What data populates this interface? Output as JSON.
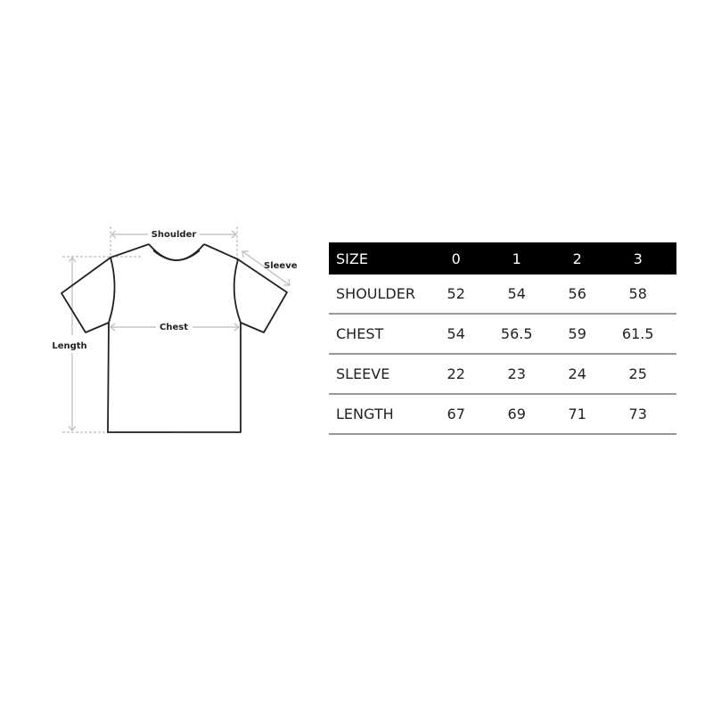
{
  "diagram": {
    "labels": {
      "shoulder": "Shoulder",
      "sleeve": "Sleeve",
      "chest": "Chest",
      "length": "Length"
    }
  },
  "table": {
    "header": [
      "SIZE",
      "0",
      "1",
      "2",
      "3"
    ],
    "rows": [
      [
        "SHOULDER",
        "52",
        "54",
        "56",
        "58"
      ],
      [
        "CHEST",
        "54",
        "56.5",
        "59",
        "61.5"
      ],
      [
        "SLEEVE",
        "22",
        "23",
        "24",
        "25"
      ],
      [
        "LENGTH",
        "67",
        "69",
        "71",
        "73"
      ]
    ]
  }
}
